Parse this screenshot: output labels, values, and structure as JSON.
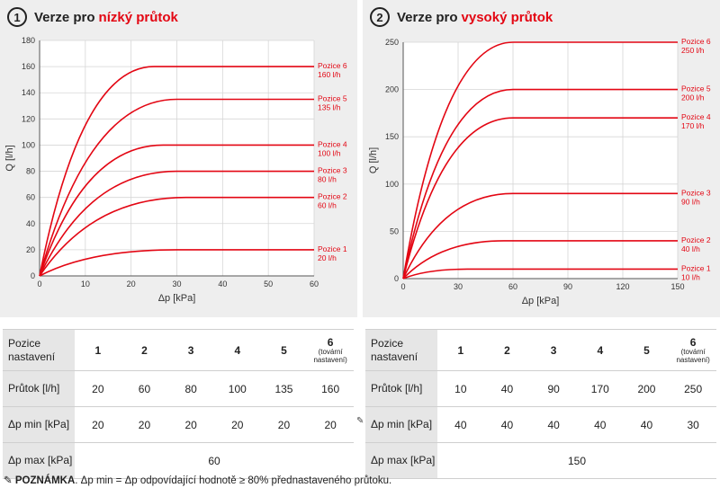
{
  "charts": [
    {
      "number": "1",
      "title_prefix": "Verze pro",
      "title_accent": "nízký průtok"
    },
    {
      "number": "2",
      "title_prefix": "Verze pro",
      "title_accent": "vysoký průtok"
    }
  ],
  "chart_data": [
    {
      "type": "line",
      "xlabel": "Δp [kPa]",
      "ylabel": "Q [l/h]",
      "xlim": [
        0,
        60
      ],
      "ylim": [
        0,
        180
      ],
      "xticks": [
        0,
        10,
        20,
        30,
        40,
        50,
        60
      ],
      "yticks": [
        0,
        20,
        40,
        60,
        80,
        100,
        120,
        140,
        160,
        180
      ],
      "grid": true,
      "line_color": "#e30613",
      "series": [
        {
          "label": "Pozice 1",
          "value": "20 l/h",
          "x": [
            0,
            30,
            60
          ],
          "y": [
            0,
            20,
            20
          ]
        },
        {
          "label": "Pozice 2",
          "value": "60 l/h",
          "x": [
            0,
            32,
            60
          ],
          "y": [
            0,
            60,
            60
          ]
        },
        {
          "label": "Pozice 3",
          "value": "80 l/h",
          "x": [
            0,
            30,
            60
          ],
          "y": [
            0,
            80,
            80
          ]
        },
        {
          "label": "Pozice 4",
          "value": "100 l/h",
          "x": [
            0,
            27,
            60
          ],
          "y": [
            0,
            100,
            100
          ]
        },
        {
          "label": "Pozice 5",
          "value": "135 l/h",
          "x": [
            0,
            30,
            60
          ],
          "y": [
            0,
            135,
            135
          ]
        },
        {
          "label": "Pozice 6",
          "value": "160 l/h",
          "x": [
            0,
            25,
            60
          ],
          "y": [
            0,
            160,
            160
          ]
        }
      ]
    },
    {
      "type": "line",
      "xlabel": "Δp [kPa]",
      "ylabel": "Q [l/h]",
      "xlim": [
        0,
        150
      ],
      "ylim": [
        0,
        250
      ],
      "xticks": [
        0,
        30,
        60,
        90,
        120,
        150
      ],
      "yticks": [
        0,
        50,
        100,
        150,
        200,
        250
      ],
      "grid": true,
      "line_color": "#e30613",
      "series": [
        {
          "label": "Pozice 1",
          "value": "10 l/h",
          "x": [
            0,
            35,
            150
          ],
          "y": [
            0,
            10,
            10
          ]
        },
        {
          "label": "Pozice 2",
          "value": "40 l/h",
          "x": [
            0,
            55,
            150
          ],
          "y": [
            0,
            40,
            40
          ]
        },
        {
          "label": "Pozice 3",
          "value": "90 l/h",
          "x": [
            0,
            60,
            150
          ],
          "y": [
            0,
            90,
            90
          ]
        },
        {
          "label": "Pozice 4",
          "value": "170 l/h",
          "x": [
            0,
            60,
            150
          ],
          "y": [
            0,
            170,
            170
          ]
        },
        {
          "label": "Pozice 5",
          "value": "200 l/h",
          "x": [
            0,
            60,
            150
          ],
          "y": [
            0,
            200,
            200
          ]
        },
        {
          "label": "Pozice 6",
          "value": "250 l/h",
          "x": [
            0,
            60,
            150
          ],
          "y": [
            0,
            250,
            250
          ]
        }
      ]
    }
  ],
  "tables": [
    {
      "row_heads": [
        "Pozice nastavení",
        "Průtok [l/h]",
        "Δp min [kPa]",
        "Δp max [kPa]"
      ],
      "positions": [
        "1",
        "2",
        "3",
        "4",
        "5",
        "6"
      ],
      "default_note": "(tovární nastavení)",
      "flow": [
        "20",
        "60",
        "80",
        "100",
        "135",
        "160"
      ],
      "dp_min": [
        "20",
        "20",
        "20",
        "20",
        "20",
        "20"
      ],
      "dp_max": "60"
    },
    {
      "row_heads": [
        "Pozice nastavení",
        "Průtok [l/h]",
        "Δp min [kPa]",
        "Δp max [kPa]"
      ],
      "positions": [
        "1",
        "2",
        "3",
        "4",
        "5",
        "6"
      ],
      "default_note": "(tovární nastavení)",
      "flow": [
        "10",
        "40",
        "90",
        "170",
        "200",
        "250"
      ],
      "dp_min": [
        "40",
        "40",
        "40",
        "40",
        "40",
        "30"
      ],
      "dp_max": "150"
    }
  ],
  "note": {
    "icon": "pencil-icon",
    "label": "POZNÁMKA",
    "text": ". Δp min = Δp odpovídající hodnotě ≥ 80% přednastaveného průtoku."
  }
}
